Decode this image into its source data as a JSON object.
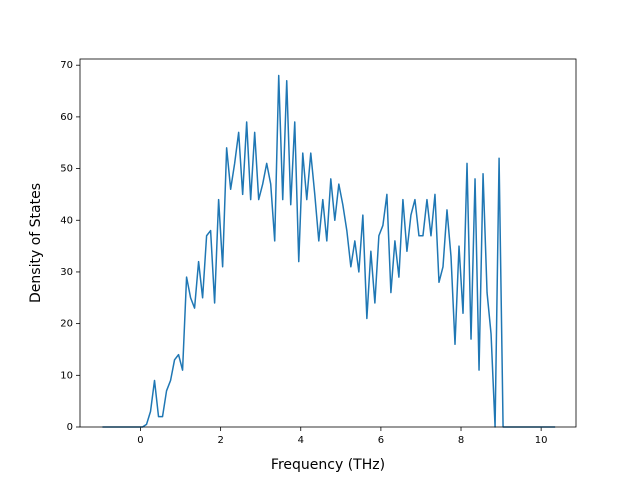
{
  "chart_data": {
    "type": "line",
    "xlabel": "Frequency (THz)",
    "ylabel": "Density of States",
    "color": "#1f77b4",
    "x": [
      -0.95,
      -0.85,
      -0.75,
      -0.65,
      -0.55,
      -0.45,
      -0.35,
      -0.25,
      -0.15,
      -0.05,
      0.05,
      0.15,
      0.25,
      0.35,
      0.45,
      0.55,
      0.65,
      0.75,
      0.85,
      0.95,
      1.05,
      1.15,
      1.25,
      1.35,
      1.45,
      1.55,
      1.65,
      1.75,
      1.85,
      1.95,
      2.05,
      2.15,
      2.25,
      2.35,
      2.45,
      2.55,
      2.65,
      2.75,
      2.85,
      2.95,
      3.05,
      3.15,
      3.25,
      3.35,
      3.45,
      3.55,
      3.65,
      3.75,
      3.85,
      3.95,
      4.05,
      4.15,
      4.25,
      4.35,
      4.45,
      4.55,
      4.65,
      4.75,
      4.85,
      4.95,
      5.05,
      5.15,
      5.25,
      5.35,
      5.45,
      5.55,
      5.65,
      5.75,
      5.85,
      5.95,
      6.05,
      6.15,
      6.25,
      6.35,
      6.45,
      6.55,
      6.65,
      6.75,
      6.85,
      6.95,
      7.05,
      7.15,
      7.25,
      7.35,
      7.45,
      7.55,
      7.65,
      7.75,
      7.85,
      7.95,
      8.05,
      8.15,
      8.25,
      8.35,
      8.45,
      8.55,
      8.65,
      8.75,
      8.85,
      8.95,
      9.05,
      9.15,
      9.25,
      9.35,
      9.45,
      9.55,
      9.65,
      9.75,
      9.85,
      9.95,
      10.05,
      10.15,
      10.25,
      10.35
    ],
    "values": [
      0,
      0,
      0,
      0,
      0,
      0,
      0,
      0,
      0,
      0,
      0,
      0.5,
      3,
      9,
      2,
      2,
      7,
      9,
      13,
      14,
      11,
      29,
      25,
      23,
      32,
      25,
      37,
      38,
      24,
      44,
      31,
      54,
      46,
      51,
      57,
      45,
      59,
      44,
      57,
      44,
      47,
      51,
      47,
      36,
      68,
      44,
      67,
      43,
      59,
      32,
      53,
      44,
      53,
      45,
      36,
      44,
      36,
      48,
      40,
      47,
      43,
      38,
      31,
      36,
      30,
      41,
      21,
      34,
      24,
      37,
      39,
      45,
      26,
      36,
      29,
      44,
      34,
      41,
      44,
      37,
      37,
      44,
      37,
      45,
      28,
      31,
      42,
      33,
      16,
      35,
      22,
      51,
      17,
      48,
      11,
      49,
      26,
      18,
      0,
      52,
      0,
      0,
      0,
      0,
      0,
      0,
      0,
      0,
      0,
      0,
      0,
      0,
      0,
      0
    ],
    "xlim": [
      -1.51,
      10.87
    ],
    "ylim": [
      0,
      71.2
    ],
    "xticks": [
      0,
      2,
      4,
      6,
      8,
      10
    ],
    "yticks": [
      0,
      10,
      20,
      30,
      40,
      50,
      60,
      70
    ]
  }
}
